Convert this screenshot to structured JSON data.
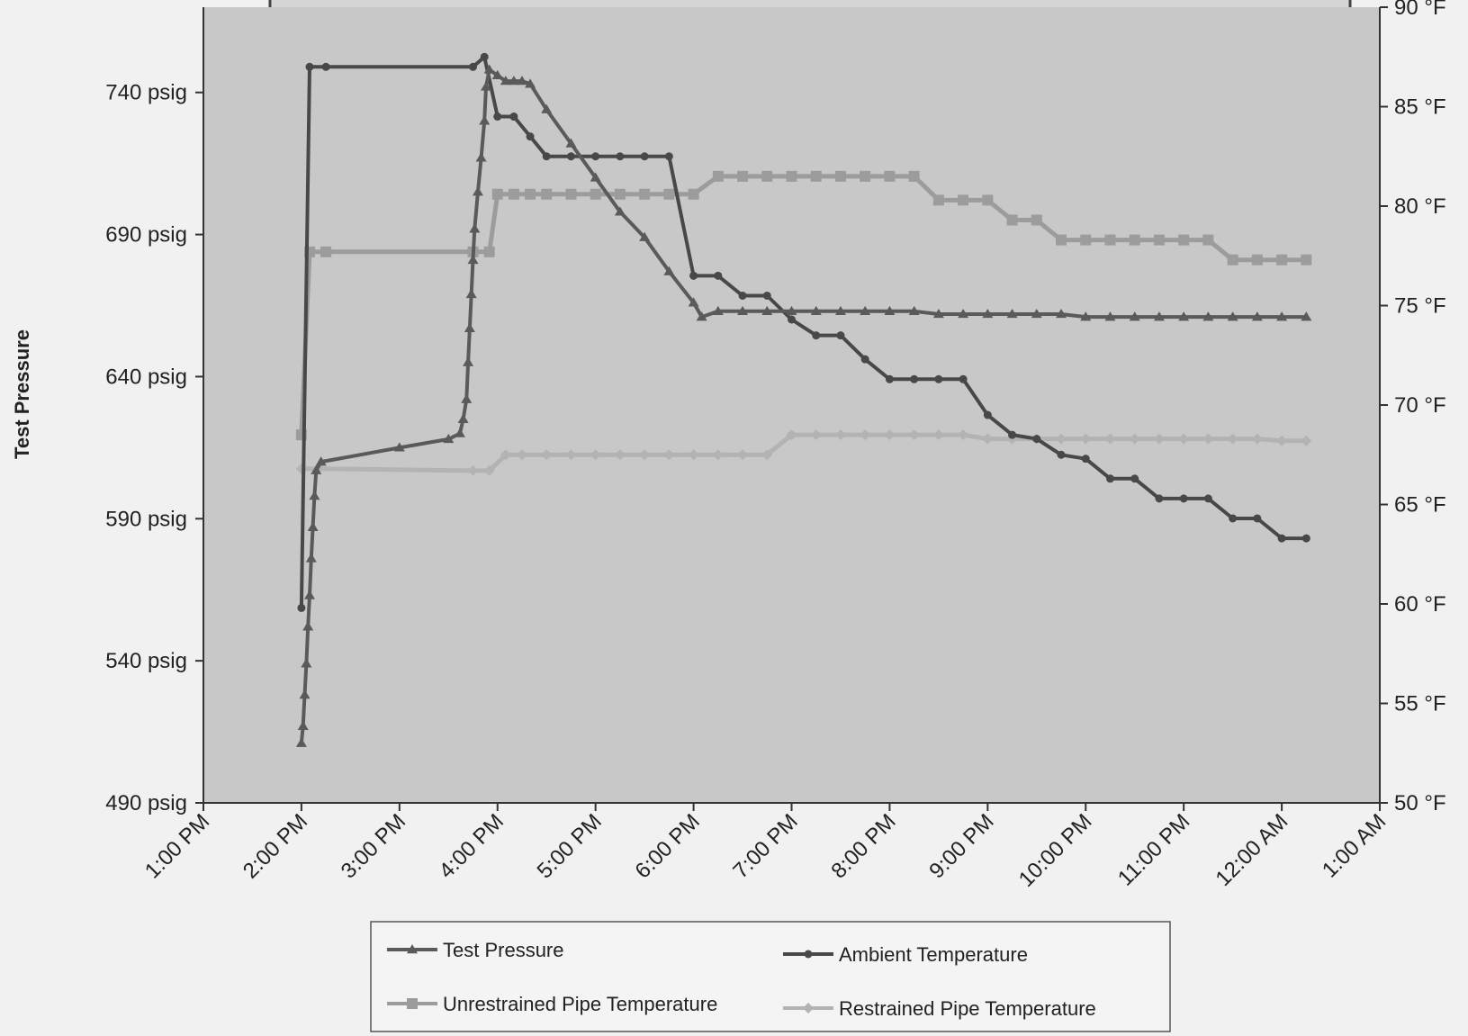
{
  "chart_data": {
    "type": "line",
    "title": "",
    "ylabel_left": "Test Pressure",
    "ylabel_right": "",
    "xlabel": "",
    "x_ticks": [
      "1:00 PM",
      "2:00 PM",
      "3:00 PM",
      "4:00 PM",
      "5:00 PM",
      "6:00 PM",
      "7:00 PM",
      "8:00 PM",
      "9:00 PM",
      "10:00 PM",
      "11:00 PM",
      "12:00 AM",
      "1:00 AM"
    ],
    "y_left": {
      "min": 490,
      "max": 770,
      "ticks": [
        490,
        540,
        590,
        640,
        690,
        740
      ],
      "unit": "psig"
    },
    "y_right": {
      "min": 50,
      "max": 90,
      "ticks": [
        50,
        55,
        60,
        65,
        70,
        75,
        80,
        85,
        90
      ],
      "unit": "°F"
    },
    "grid": false,
    "legend_position": "bottom",
    "series": [
      {
        "name": "Test Pressure",
        "axis": "left",
        "color": "#5a5a5a",
        "marker": "triangle",
        "points": [
          [
            "2:00 PM",
            511
          ],
          [
            "2:01 PM",
            517
          ],
          [
            "2:02 PM",
            528
          ],
          [
            "2:03 PM",
            539
          ],
          [
            "2:04 PM",
            552
          ],
          [
            "2:05 PM",
            563
          ],
          [
            "2:06 PM",
            576
          ],
          [
            "2:07 PM",
            587
          ],
          [
            "2:08 PM",
            598
          ],
          [
            "2:09 PM",
            607
          ],
          [
            "2:12 PM",
            610
          ],
          [
            "3:00 PM",
            615
          ],
          [
            "3:30 PM",
            618
          ],
          [
            "3:37 PM",
            620
          ],
          [
            "3:39 PM",
            625
          ],
          [
            "3:41 PM",
            632
          ],
          [
            "3:42 PM",
            645
          ],
          [
            "3:43 PM",
            657
          ],
          [
            "3:44 PM",
            669
          ],
          [
            "3:45 PM",
            681
          ],
          [
            "3:46 PM",
            692
          ],
          [
            "3:48 PM",
            705
          ],
          [
            "3:50 PM",
            717
          ],
          [
            "3:52 PM",
            730
          ],
          [
            "3:53 PM",
            742
          ],
          [
            "3:55 PM",
            748
          ],
          [
            "4:00 PM",
            746
          ],
          [
            "4:05 PM",
            744
          ],
          [
            "4:10 PM",
            744
          ],
          [
            "4:15 PM",
            744
          ],
          [
            "4:20 PM",
            743
          ],
          [
            "4:30 PM",
            734
          ],
          [
            "4:45 PM",
            722
          ],
          [
            "5:00 PM",
            710
          ],
          [
            "5:15 PM",
            698
          ],
          [
            "5:30 PM",
            689
          ],
          [
            "5:45 PM",
            677
          ],
          [
            "6:00 PM",
            666
          ],
          [
            "6:05 PM",
            661
          ],
          [
            "6:15 PM",
            663
          ],
          [
            "6:30 PM",
            663
          ],
          [
            "6:45 PM",
            663
          ],
          [
            "7:00 PM",
            663
          ],
          [
            "7:15 PM",
            663
          ],
          [
            "7:30 PM",
            663
          ],
          [
            "7:45 PM",
            663
          ],
          [
            "8:00 PM",
            663
          ],
          [
            "8:15 PM",
            663
          ],
          [
            "8:30 PM",
            662
          ],
          [
            "8:45 PM",
            662
          ],
          [
            "9:00 PM",
            662
          ],
          [
            "9:15 PM",
            662
          ],
          [
            "9:30 PM",
            662
          ],
          [
            "9:45 PM",
            662
          ],
          [
            "10:00 PM",
            661
          ],
          [
            "10:15 PM",
            661
          ],
          [
            "10:30 PM",
            661
          ],
          [
            "10:45 PM",
            661
          ],
          [
            "11:00 PM",
            661
          ],
          [
            "11:15 PM",
            661
          ],
          [
            "11:30 PM",
            661
          ],
          [
            "11:45 PM",
            661
          ],
          [
            "12:00 AM",
            661
          ],
          [
            "12:15 AM",
            661
          ]
        ]
      },
      {
        "name": "Ambient Temperature",
        "axis": "right",
        "color": "#484848",
        "marker": "circle",
        "points": [
          [
            "2:00 PM",
            59.8
          ],
          [
            "2:05 PM",
            87.0
          ],
          [
            "2:15 PM",
            87.0
          ],
          [
            "3:45 PM",
            87.0
          ],
          [
            "3:52 PM",
            87.5
          ],
          [
            "4:00 PM",
            84.5
          ],
          [
            "4:10 PM",
            84.5
          ],
          [
            "4:20 PM",
            83.5
          ],
          [
            "4:30 PM",
            82.5
          ],
          [
            "4:45 PM",
            82.5
          ],
          [
            "5:00 PM",
            82.5
          ],
          [
            "5:15 PM",
            82.5
          ],
          [
            "5:30 PM",
            82.5
          ],
          [
            "5:45 PM",
            82.5
          ],
          [
            "6:00 PM",
            76.5
          ],
          [
            "6:15 PM",
            76.5
          ],
          [
            "6:30 PM",
            75.5
          ],
          [
            "6:45 PM",
            75.5
          ],
          [
            "7:00 PM",
            74.3
          ],
          [
            "7:15 PM",
            73.5
          ],
          [
            "7:30 PM",
            73.5
          ],
          [
            "7:45 PM",
            72.3
          ],
          [
            "8:00 PM",
            71.3
          ],
          [
            "8:15 PM",
            71.3
          ],
          [
            "8:30 PM",
            71.3
          ],
          [
            "8:45 PM",
            71.3
          ],
          [
            "9:00 PM",
            69.5
          ],
          [
            "9:15 PM",
            68.5
          ],
          [
            "9:30 PM",
            68.3
          ],
          [
            "9:45 PM",
            67.5
          ],
          [
            "10:00 PM",
            67.3
          ],
          [
            "10:15 PM",
            66.3
          ],
          [
            "10:30 PM",
            66.3
          ],
          [
            "10:45 PM",
            65.3
          ],
          [
            "11:00 PM",
            65.3
          ],
          [
            "11:15 PM",
            65.3
          ],
          [
            "11:30 PM",
            64.3
          ],
          [
            "11:45 PM",
            64.3
          ],
          [
            "12:00 AM",
            63.3
          ],
          [
            "12:15 AM",
            63.3
          ]
        ]
      },
      {
        "name": "Unrestrained Pipe Temperature",
        "axis": "right",
        "color": "#9c9c9c",
        "marker": "square",
        "points": [
          [
            "2:00 PM",
            68.5
          ],
          [
            "2:05 PM",
            77.7
          ],
          [
            "2:15 PM",
            77.7
          ],
          [
            "3:45 PM",
            77.7
          ],
          [
            "3:55 PM",
            77.7
          ],
          [
            "4:00 PM",
            80.6
          ],
          [
            "4:10 PM",
            80.6
          ],
          [
            "4:20 PM",
            80.6
          ],
          [
            "4:30 PM",
            80.6
          ],
          [
            "4:45 PM",
            80.6
          ],
          [
            "5:00 PM",
            80.6
          ],
          [
            "5:15 PM",
            80.6
          ],
          [
            "5:30 PM",
            80.6
          ],
          [
            "5:45 PM",
            80.6
          ],
          [
            "6:00 PM",
            80.6
          ],
          [
            "6:15 PM",
            81.5
          ],
          [
            "6:30 PM",
            81.5
          ],
          [
            "6:45 PM",
            81.5
          ],
          [
            "7:00 PM",
            81.5
          ],
          [
            "7:15 PM",
            81.5
          ],
          [
            "7:30 PM",
            81.5
          ],
          [
            "7:45 PM",
            81.5
          ],
          [
            "8:00 PM",
            81.5
          ],
          [
            "8:15 PM",
            81.5
          ],
          [
            "8:30 PM",
            80.3
          ],
          [
            "8:45 PM",
            80.3
          ],
          [
            "9:00 PM",
            80.3
          ],
          [
            "9:15 PM",
            79.3
          ],
          [
            "9:30 PM",
            79.3
          ],
          [
            "9:45 PM",
            78.3
          ],
          [
            "10:00 PM",
            78.3
          ],
          [
            "10:15 PM",
            78.3
          ],
          [
            "10:30 PM",
            78.3
          ],
          [
            "10:45 PM",
            78.3
          ],
          [
            "11:00 PM",
            78.3
          ],
          [
            "11:15 PM",
            78.3
          ],
          [
            "11:30 PM",
            77.3
          ],
          [
            "11:45 PM",
            77.3
          ],
          [
            "12:00 AM",
            77.3
          ],
          [
            "12:15 AM",
            77.3
          ]
        ]
      },
      {
        "name": "Restrained Pipe Temperature",
        "axis": "right",
        "color": "#b3b3b3",
        "marker": "diamond",
        "points": [
          [
            "2:00 PM",
            66.8
          ],
          [
            "2:10 PM",
            66.8
          ],
          [
            "3:45 PM",
            66.7
          ],
          [
            "3:55 PM",
            66.7
          ],
          [
            "4:05 PM",
            67.5
          ],
          [
            "4:15 PM",
            67.5
          ],
          [
            "4:30 PM",
            67.5
          ],
          [
            "4:45 PM",
            67.5
          ],
          [
            "5:00 PM",
            67.5
          ],
          [
            "5:15 PM",
            67.5
          ],
          [
            "5:30 PM",
            67.5
          ],
          [
            "5:45 PM",
            67.5
          ],
          [
            "6:00 PM",
            67.5
          ],
          [
            "6:15 PM",
            67.5
          ],
          [
            "6:30 PM",
            67.5
          ],
          [
            "6:45 PM",
            67.5
          ],
          [
            "7:00 PM",
            68.5
          ],
          [
            "7:15 PM",
            68.5
          ],
          [
            "7:30 PM",
            68.5
          ],
          [
            "7:45 PM",
            68.5
          ],
          [
            "8:00 PM",
            68.5
          ],
          [
            "8:15 PM",
            68.5
          ],
          [
            "8:30 PM",
            68.5
          ],
          [
            "8:45 PM",
            68.5
          ],
          [
            "9:00 PM",
            68.3
          ],
          [
            "9:15 PM",
            68.3
          ],
          [
            "9:30 PM",
            68.3
          ],
          [
            "9:45 PM",
            68.3
          ],
          [
            "10:00 PM",
            68.3
          ],
          [
            "10:15 PM",
            68.3
          ],
          [
            "10:30 PM",
            68.3
          ],
          [
            "10:45 PM",
            68.3
          ],
          [
            "11:00 PM",
            68.3
          ],
          [
            "11:15 PM",
            68.3
          ],
          [
            "11:30 PM",
            68.3
          ],
          [
            "11:45 PM",
            68.3
          ],
          [
            "12:00 AM",
            68.2
          ],
          [
            "12:15 AM",
            68.2
          ]
        ]
      }
    ],
    "legend": [
      {
        "label": "Test Pressure",
        "series": 0
      },
      {
        "label": "Ambient Temperature",
        "series": 1
      },
      {
        "label": "Unrestrained Pipe Temperature",
        "series": 2
      },
      {
        "label": "Restrained Pipe Temperature",
        "series": 3
      }
    ]
  },
  "colors": {
    "plot_bg": "#c8c8c8",
    "page_bg": "#f1f1f1",
    "axis": "#333333",
    "banner_fill": "#d6d6d6",
    "banner_stroke": "#444444"
  }
}
